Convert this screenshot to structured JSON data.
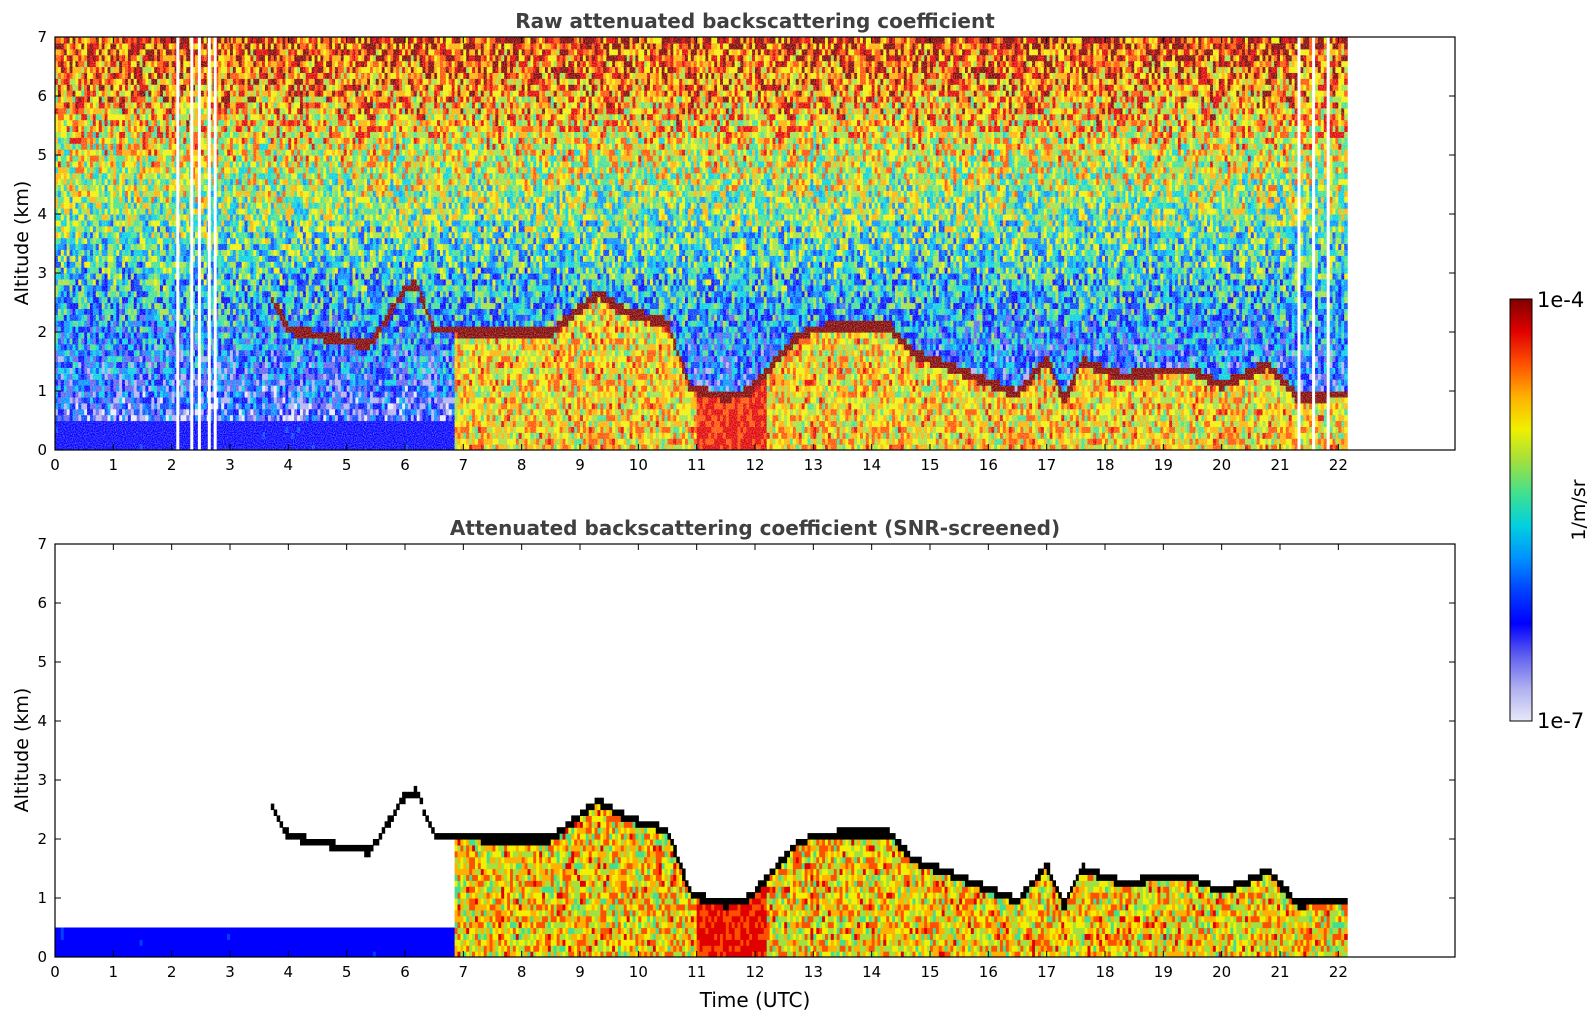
{
  "chart_data": [
    {
      "type": "heatmap",
      "title": "Raw attenuated backscattering coefficient",
      "xlabel": "",
      "ylabel": "Altitude (km)",
      "xlim": [
        0,
        24
      ],
      "ylim": [
        0,
        7
      ],
      "xticks": [
        "0",
        "1",
        "2",
        "3",
        "4",
        "5",
        "6",
        "7",
        "8",
        "9",
        "10",
        "11",
        "12",
        "13",
        "14",
        "15",
        "16",
        "17",
        "18",
        "19",
        "20",
        "21",
        "22"
      ],
      "yticks": [
        "0",
        "1",
        "2",
        "3",
        "4",
        "5",
        "6",
        "7"
      ],
      "data_end_hour": 22.15,
      "gaps_hours": [
        2.08,
        2.32,
        2.45,
        2.62,
        2.72,
        21.3,
        21.55,
        21.8
      ],
      "screened": false,
      "layer_top_km": [
        {
          "t": 3.7,
          "h": 2.55
        },
        {
          "t": 4.0,
          "h": 2.0
        },
        {
          "t": 5.0,
          "h": 1.8
        },
        {
          "t": 5.4,
          "h": 1.75
        },
        {
          "t": 5.7,
          "h": 2.2
        },
        {
          "t": 6.0,
          "h": 2.7
        },
        {
          "t": 6.2,
          "h": 2.75
        },
        {
          "t": 6.5,
          "h": 2.0
        },
        {
          "t": 7.5,
          "h": 1.95
        },
        {
          "t": 8.5,
          "h": 1.95
        },
        {
          "t": 9.3,
          "h": 2.6
        },
        {
          "t": 9.8,
          "h": 2.3
        },
        {
          "t": 10.5,
          "h": 2.1
        },
        {
          "t": 10.9,
          "h": 1.0
        },
        {
          "t": 11.5,
          "h": 0.85
        },
        {
          "t": 11.9,
          "h": 0.95
        },
        {
          "t": 12.3,
          "h": 1.4
        },
        {
          "t": 12.7,
          "h": 1.85
        },
        {
          "t": 13.0,
          "h": 2.0
        },
        {
          "t": 13.5,
          "h": 2.05
        },
        {
          "t": 14.3,
          "h": 2.05
        },
        {
          "t": 14.7,
          "h": 1.6
        },
        {
          "t": 15.5,
          "h": 1.3
        },
        {
          "t": 16.5,
          "h": 0.9
        },
        {
          "t": 17.0,
          "h": 1.5
        },
        {
          "t": 17.3,
          "h": 0.8
        },
        {
          "t": 17.6,
          "h": 1.45
        },
        {
          "t": 18.3,
          "h": 1.2
        },
        {
          "t": 19.0,
          "h": 1.3
        },
        {
          "t": 19.5,
          "h": 1.3
        },
        {
          "t": 20.0,
          "h": 1.05
        },
        {
          "t": 20.8,
          "h": 1.4
        },
        {
          "t": 21.3,
          "h": 0.85
        },
        {
          "t": 22.15,
          "h": 0.9
        }
      ]
    },
    {
      "type": "heatmap",
      "title": "Attenuated backscattering coefficient (SNR-screened)",
      "xlabel": "Time (UTC)",
      "ylabel": "Altitude (km)",
      "xlim": [
        0,
        24
      ],
      "ylim": [
        0,
        7
      ],
      "xticks": [
        "0",
        "1",
        "2",
        "3",
        "4",
        "5",
        "6",
        "7",
        "8",
        "9",
        "10",
        "11",
        "12",
        "13",
        "14",
        "15",
        "16",
        "17",
        "18",
        "19",
        "20",
        "21",
        "22"
      ],
      "yticks": [
        "0",
        "1",
        "2",
        "3",
        "4",
        "5",
        "6",
        "7"
      ],
      "data_end_hour": 22.15,
      "screened": true
    }
  ],
  "colorbar": {
    "label": "1/m/sr",
    "max_label": "1e-4",
    "min_label": "1e-7",
    "colors": [
      "#e8e8f8",
      "#b0b0f0",
      "#6060f0",
      "#0000ff",
      "#0040ff",
      "#0090ff",
      "#00d0e0",
      "#40e090",
      "#a0e040",
      "#f0f000",
      "#ffb000",
      "#ff5000",
      "#e00000",
      "#800000"
    ]
  }
}
